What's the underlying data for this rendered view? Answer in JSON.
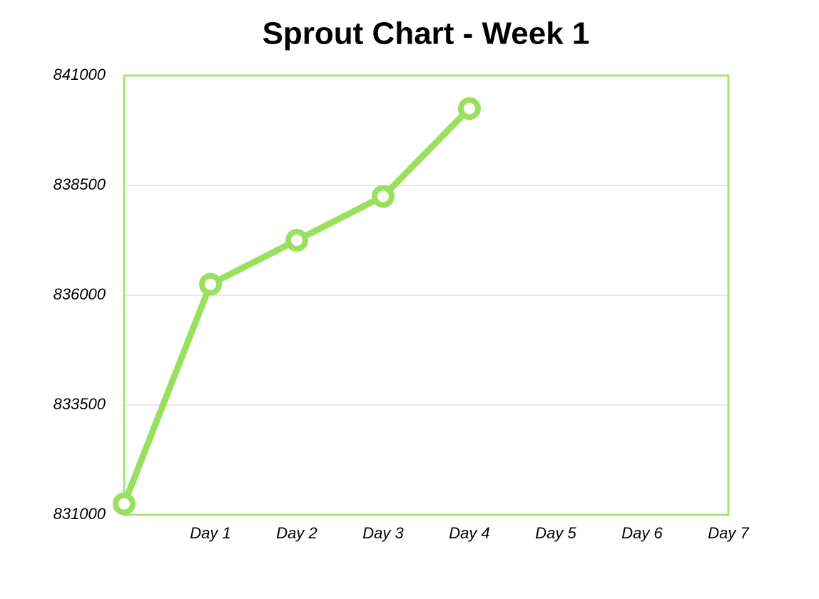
{
  "chart_data": {
    "type": "line",
    "title": "Sprout Chart  - Week 1",
    "categories": [
      null,
      "Day 1",
      "Day 2",
      "Day 3",
      "Day 4",
      "Day 5",
      "Day 6",
      "Day 7"
    ],
    "series": [
      {
        "name": "Sprout",
        "color": "#99e05f",
        "values": [
          831250,
          836250,
          837250,
          838250,
          840250,
          null,
          null,
          null
        ]
      }
    ],
    "ylim": [
      831000,
      841000
    ],
    "yticks": [
      831000,
      833500,
      836000,
      838500,
      841000
    ],
    "grid": true
  }
}
